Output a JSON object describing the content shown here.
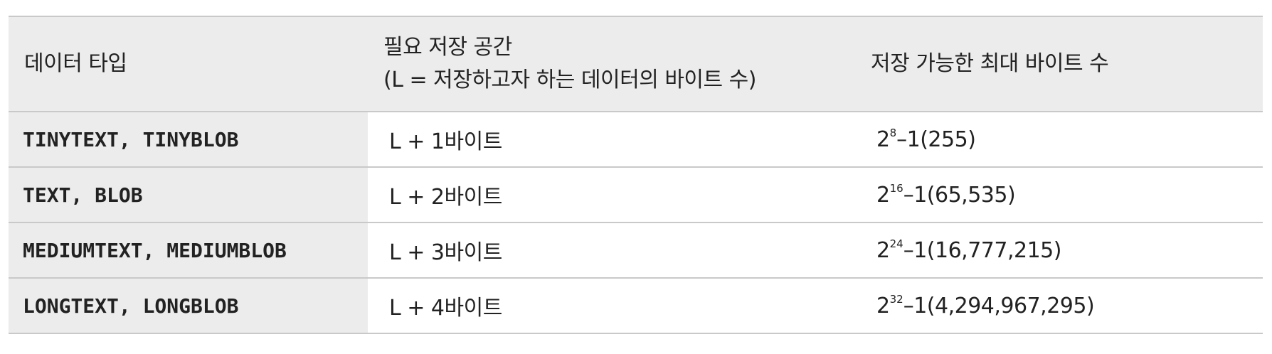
{
  "table": {
    "headers": {
      "type": "데이터 타입",
      "space_line1": "필요 저장 공간",
      "space_line2": "(L = 저장하고자 하는 데이터의 바이트 수)",
      "max": "저장 가능한 최대 바이트 수"
    },
    "rows": [
      {
        "type": "TINYTEXT, TINYBLOB",
        "space": "L + 1바이트",
        "max_base": "2",
        "max_exp": "8",
        "max_rest": "–1(255)"
      },
      {
        "type": "TEXT, BLOB",
        "space": "L + 2바이트",
        "max_base": "2",
        "max_exp": "16",
        "max_rest": "–1(65,535)"
      },
      {
        "type": "MEDIUMTEXT, MEDIUMBLOB",
        "space": "L + 3바이트",
        "max_base": "2",
        "max_exp": "24",
        "max_rest": "–1(16,777,215)"
      },
      {
        "type": "LONGTEXT, LONGBLOB",
        "space": "L + 4바이트",
        "max_base": "2",
        "max_exp": "32",
        "max_rest": "–1(4,294,967,295)"
      }
    ]
  },
  "colors": {
    "header_bg": "#ececec",
    "border": "#c9c9c9",
    "text": "#222222"
  }
}
